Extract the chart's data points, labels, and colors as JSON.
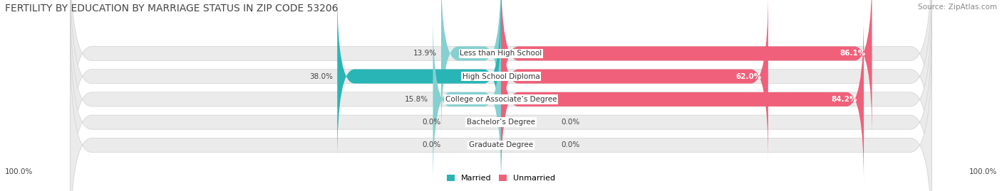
{
  "title": "FERTILITY BY EDUCATION BY MARRIAGE STATUS IN ZIP CODE 53206",
  "source": "Source: ZipAtlas.com",
  "categories": [
    "Less than High School",
    "High School Diploma",
    "College or Associate’s Degree",
    "Bachelor’s Degree",
    "Graduate Degree"
  ],
  "married_values": [
    13.9,
    38.0,
    15.8,
    0.0,
    0.0
  ],
  "unmarried_values": [
    86.1,
    62.0,
    84.2,
    0.0,
    0.0
  ],
  "married_color_dark": "#29b5b5",
  "married_color_light": "#85d0d0",
  "unmarried_color_dark": "#f0607a",
  "unmarried_color_light": "#f5a0ba",
  "bar_bg_color": "#ebebeb",
  "bar_border_color": "#d0d0d0",
  "background_color": "#ffffff",
  "title_fontsize": 10,
  "source_fontsize": 7.5,
  "label_fontsize": 7.5,
  "cat_fontsize": 7.5,
  "value_fontsize": 7.5
}
